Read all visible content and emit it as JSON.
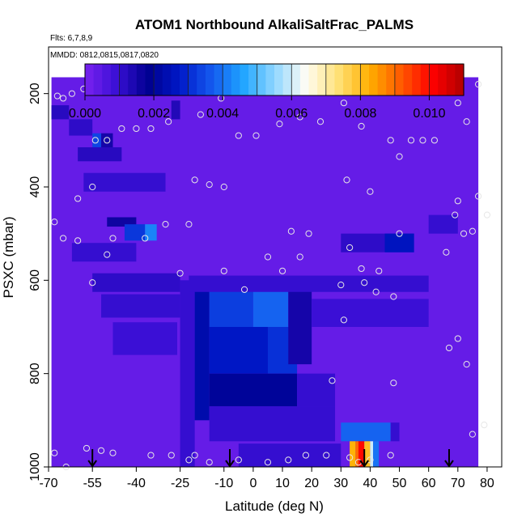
{
  "chart_data": {
    "type": "heatmap",
    "title": "ATOM1 Northbound AlkaliSaltFrac_PALMS",
    "annotations": [
      "Flts: 6,7,8,9",
      "MMDD: 0812,0815,0817,0820"
    ],
    "xlabel": "Latitude (deg N)",
    "ylabel": "PSXC (mbar)",
    "xlim": [
      -70,
      85
    ],
    "ylim": [
      1000,
      100
    ],
    "x_ticks": [
      -70,
      -55,
      -40,
      -25,
      -10,
      0,
      10,
      20,
      30,
      40,
      50,
      60,
      70,
      80
    ],
    "y_ticks": [
      200,
      400,
      600,
      800,
      1000
    ],
    "colorbar": {
      "range": [
        0,
        0.011
      ],
      "tick_values": [
        0,
        0.002,
        0.004,
        0.006,
        0.008,
        0.01
      ],
      "tick_labels": [
        "0.000",
        "0.002",
        "0.004",
        "0.006",
        "0.008",
        "0.010"
      ],
      "colors": [
        "#7a22f0",
        "#3a0fd6",
        "#00008f",
        "#0018c8",
        "#1458ee",
        "#1ea4ff",
        "#8fd6ff",
        "#fffdf5",
        "#ffe27a",
        "#ffb000",
        "#ff5a00",
        "#ff0000",
        "#b00000"
      ]
    },
    "background_value": 0.0003,
    "cells": [
      {
        "lat": [
          -69,
          77
        ],
        "p": [
          165,
          1000
        ],
        "v": 0.0003
      },
      {
        "lat": [
          -69,
          -63
        ],
        "p": [
          225,
          255
        ],
        "v": 0.0012
      },
      {
        "lat": [
          -63,
          -55
        ],
        "p": [
          255,
          290
        ],
        "v": 0.0011
      },
      {
        "lat": [
          -55,
          -52
        ],
        "p": [
          285,
          315
        ],
        "v": 0.0034
      },
      {
        "lat": [
          -52,
          -48
        ],
        "p": [
          285,
          315
        ],
        "v": 0.0015
      },
      {
        "lat": [
          -60,
          -45
        ],
        "p": [
          315,
          345
        ],
        "v": 0.0012
      },
      {
        "lat": [
          -58,
          -30
        ],
        "p": [
          370,
          410
        ],
        "v": 0.001
      },
      {
        "lat": [
          -28,
          -25
        ],
        "p": [
          215,
          255
        ],
        "v": 0.0013
      },
      {
        "lat": [
          -50,
          -40
        ],
        "p": [
          465,
          485
        ],
        "v": 0.0016
      },
      {
        "lat": [
          -44,
          -37
        ],
        "p": [
          480,
          515
        ],
        "v": 0.0032
      },
      {
        "lat": [
          -37,
          -33
        ],
        "p": [
          480,
          515
        ],
        "v": 0.0042
      },
      {
        "lat": [
          -62,
          -40
        ],
        "p": [
          520,
          560
        ],
        "v": 0.001
      },
      {
        "lat": [
          -55,
          -25
        ],
        "p": [
          585,
          625
        ],
        "v": 0.0011
      },
      {
        "lat": [
          -52,
          -25
        ],
        "p": [
          630,
          680
        ],
        "v": 0.001
      },
      {
        "lat": [
          -48,
          -26
        ],
        "p": [
          690,
          760
        ],
        "v": 0.0009
      },
      {
        "lat": [
          -25,
          -20
        ],
        "p": [
          600,
          1000
        ],
        "v": 0.001
      },
      {
        "lat": [
          -20,
          -15
        ],
        "p": [
          610,
          900
        ],
        "v": 0.0023
      },
      {
        "lat": [
          -15,
          0
        ],
        "p": [
          600,
          700
        ],
        "v": 0.0033
      },
      {
        "lat": [
          0,
          12
        ],
        "p": [
          600,
          700
        ],
        "v": 0.0038
      },
      {
        "lat": [
          -15,
          5
        ],
        "p": [
          700,
          800
        ],
        "v": 0.0027
      },
      {
        "lat": [
          5,
          15
        ],
        "p": [
          700,
          800
        ],
        "v": 0.0031
      },
      {
        "lat": [
          -15,
          15
        ],
        "p": [
          800,
          870
        ],
        "v": 0.002
      },
      {
        "lat": [
          12,
          20
        ],
        "p": [
          600,
          780
        ],
        "v": 0.0015
      },
      {
        "lat": [
          15,
          28
        ],
        "p": [
          800,
          870
        ],
        "v": 0.001
      },
      {
        "lat": [
          -15,
          28
        ],
        "p": [
          870,
          945
        ],
        "v": 0.001
      },
      {
        "lat": [
          -22,
          60
        ],
        "p": [
          590,
          625
        ],
        "v": 0.001
      },
      {
        "lat": [
          20,
          60
        ],
        "p": [
          640,
          700
        ],
        "v": 0.0009
      },
      {
        "lat": [
          30,
          55
        ],
        "p": [
          500,
          540
        ],
        "v": 0.0011
      },
      {
        "lat": [
          45,
          55
        ],
        "p": [
          500,
          540
        ],
        "v": 0.0026
      },
      {
        "lat": [
          60,
          70
        ],
        "p": [
          460,
          500
        ],
        "v": 0.001
      },
      {
        "lat": [
          30,
          47
        ],
        "p": [
          905,
          945
        ],
        "v": 0.0038
      },
      {
        "lat": [
          47,
          50
        ],
        "p": [
          905,
          945
        ],
        "v": 0.001
      },
      {
        "lat": [
          33,
          35
        ],
        "p": [
          945,
          1000
        ],
        "v": 0.0082
      },
      {
        "lat": [
          35,
          36
        ],
        "p": [
          945,
          1000
        ],
        "v": 0.009
      },
      {
        "lat": [
          36,
          38
        ],
        "p": [
          945,
          1000
        ],
        "v": 0.01
      },
      {
        "lat": [
          38,
          40
        ],
        "p": [
          945,
          1000
        ],
        "v": 0.008
      },
      {
        "lat": [
          40,
          41
        ],
        "p": [
          945,
          1000
        ],
        "v": 0.006
      },
      {
        "lat": [
          41,
          43
        ],
        "p": [
          945,
          1000
        ],
        "v": 0.004
      },
      {
        "lat": [
          -5,
          30
        ],
        "p": [
          950,
          1000
        ],
        "v": 0.001
      }
    ],
    "sample_points": [
      {
        "lat": -67,
        "p": 205
      },
      {
        "lat": -65,
        "p": 210
      },
      {
        "lat": -62,
        "p": 200
      },
      {
        "lat": -58,
        "p": 190
      },
      {
        "lat": -54,
        "p": 300
      },
      {
        "lat": -50,
        "p": 300
      },
      {
        "lat": -45,
        "p": 275
      },
      {
        "lat": -40,
        "p": 275
      },
      {
        "lat": -35,
        "p": 275
      },
      {
        "lat": -29,
        "p": 260
      },
      {
        "lat": -18,
        "p": 245
      },
      {
        "lat": -11,
        "p": 210
      },
      {
        "lat": -5,
        "p": 290
      },
      {
        "lat": 1,
        "p": 290
      },
      {
        "lat": 9,
        "p": 265
      },
      {
        "lat": 16,
        "p": 250
      },
      {
        "lat": 23,
        "p": 260
      },
      {
        "lat": 31,
        "p": 220
      },
      {
        "lat": 37,
        "p": 270
      },
      {
        "lat": 40,
        "p": 180
      },
      {
        "lat": 47,
        "p": 300
      },
      {
        "lat": 54,
        "p": 300
      },
      {
        "lat": 58,
        "p": 300
      },
      {
        "lat": 62,
        "p": 300
      },
      {
        "lat": 70,
        "p": 220
      },
      {
        "lat": 73,
        "p": 260
      },
      {
        "lat": 77,
        "p": 180
      },
      {
        "lat": -55,
        "p": 400
      },
      {
        "lat": -60,
        "p": 425
      },
      {
        "lat": -20,
        "p": 385
      },
      {
        "lat": -15,
        "p": 395
      },
      {
        "lat": -10,
        "p": 400
      },
      {
        "lat": 32,
        "p": 385
      },
      {
        "lat": 40,
        "p": 410
      },
      {
        "lat": 50,
        "p": 335
      },
      {
        "lat": 70,
        "p": 430
      },
      {
        "lat": -68,
        "p": 475
      },
      {
        "lat": -48,
        "p": 510
      },
      {
        "lat": -37,
        "p": 510
      },
      {
        "lat": -30,
        "p": 480
      },
      {
        "lat": -22,
        "p": 480
      },
      {
        "lat": 13,
        "p": 495
      },
      {
        "lat": 19,
        "p": 500
      },
      {
        "lat": 33,
        "p": 530
      },
      {
        "lat": 37,
        "p": 575
      },
      {
        "lat": 43,
        "p": 580
      },
      {
        "lat": 50,
        "p": 500
      },
      {
        "lat": 66,
        "p": 540
      },
      {
        "lat": 69,
        "p": 460
      },
      {
        "lat": 72,
        "p": 500
      },
      {
        "lat": 75,
        "p": 495
      },
      {
        "lat": -65,
        "p": 510
      },
      {
        "lat": -60,
        "p": 515
      },
      {
        "lat": -55,
        "p": 605
      },
      {
        "lat": -50,
        "p": 545
      },
      {
        "lat": -25,
        "p": 585
      },
      {
        "lat": -10,
        "p": 580
      },
      {
        "lat": -3,
        "p": 620
      },
      {
        "lat": 5,
        "p": 550
      },
      {
        "lat": 10,
        "p": 580
      },
      {
        "lat": 16,
        "p": 550
      },
      {
        "lat": 30,
        "p": 610
      },
      {
        "lat": 38,
        "p": 605
      },
      {
        "lat": 42,
        "p": 625
      },
      {
        "lat": 48,
        "p": 635
      },
      {
        "lat": 67,
        "p": 745
      },
      {
        "lat": 70,
        "p": 725
      },
      {
        "lat": 73,
        "p": 780
      },
      {
        "lat": 31,
        "p": 685
      },
      {
        "lat": 27,
        "p": 815
      },
      {
        "lat": 48,
        "p": 820
      },
      {
        "lat": -68,
        "p": 970
      },
      {
        "lat": -64,
        "p": 1000
      },
      {
        "lat": -57,
        "p": 960
      },
      {
        "lat": -52,
        "p": 965
      },
      {
        "lat": -48,
        "p": 970
      },
      {
        "lat": -35,
        "p": 975
      },
      {
        "lat": -28,
        "p": 975
      },
      {
        "lat": -22,
        "p": 985
      },
      {
        "lat": -20,
        "p": 975
      },
      {
        "lat": -15,
        "p": 990
      },
      {
        "lat": -5,
        "p": 985
      },
      {
        "lat": 5,
        "p": 990
      },
      {
        "lat": 12,
        "p": 985
      },
      {
        "lat": 18,
        "p": 975
      },
      {
        "lat": 25,
        "p": 975
      },
      {
        "lat": 33,
        "p": 980
      },
      {
        "lat": 36,
        "p": 990
      },
      {
        "lat": 40,
        "p": 985
      },
      {
        "lat": 47,
        "p": 975
      },
      {
        "lat": 75,
        "p": 930
      },
      {
        "lat": 79,
        "p": 910
      },
      {
        "lat": 80,
        "p": 460
      },
      {
        "lat": 77,
        "p": 420
      }
    ],
    "arrows_latitudes": [
      -55,
      -8,
      38,
      67
    ]
  }
}
